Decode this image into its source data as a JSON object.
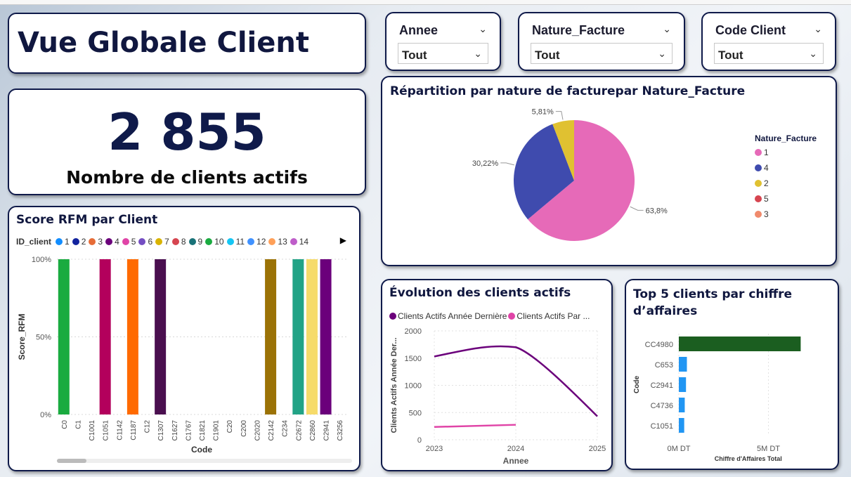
{
  "header": {
    "title": "Vue Globale Client"
  },
  "kpi": {
    "value": "2 855",
    "label": "Nombre de clients actifs"
  },
  "slicers": [
    {
      "name": "Annee",
      "value": "Tout"
    },
    {
      "name": "Nature_Facture",
      "value": "Tout"
    },
    {
      "name": "Code Client",
      "value": "Tout"
    }
  ],
  "icons": {
    "dropdown": "chevron-down-icon",
    "scroll": "chevron-right-icon"
  },
  "rfm": {
    "title": "Score RFM par Client",
    "legend_title": "ID_client",
    "legend": [
      {
        "label": "1",
        "color": "#118DFF"
      },
      {
        "label": "2",
        "color": "#12239E"
      },
      {
        "label": "3",
        "color": "#E66C37"
      },
      {
        "label": "4",
        "color": "#6B007B"
      },
      {
        "label": "5",
        "color": "#E044A7"
      },
      {
        "label": "6",
        "color": "#744EC2"
      },
      {
        "label": "7",
        "color": "#D9B300"
      },
      {
        "label": "8",
        "color": "#D64550"
      },
      {
        "label": "9",
        "color": "#197278"
      },
      {
        "label": "10",
        "color": "#1AAB40"
      },
      {
        "label": "11",
        "color": "#15C6F4"
      },
      {
        "label": "12",
        "color": "#4092FF"
      },
      {
        "label": "13",
        "color": "#FFA058"
      },
      {
        "label": "14",
        "color": "#BE5DC9"
      }
    ]
  },
  "pie": {
    "title": "Répartition par nature de facturepar Nature_Facture",
    "legend_title": "Nature_Facture",
    "legend": [
      {
        "label": "1",
        "color": "#E66AB8"
      },
      {
        "label": "4",
        "color": "#3F4BAE"
      },
      {
        "label": "2",
        "color": "#E0C131"
      },
      {
        "label": "5",
        "color": "#D64550"
      },
      {
        "label": "3",
        "color": "#F08A6C"
      }
    ]
  },
  "line": {
    "title": "Évolution des clients actifs"
  },
  "top5": {
    "title": "Top 5 clients par chiffre d’affaires"
  },
  "chart_data": [
    {
      "type": "bar",
      "title": "Score RFM par Client",
      "xlabel": "Code",
      "ylabel": "Score_RFM",
      "yticks": [
        "0%",
        "50%",
        "100%"
      ],
      "ylim": [
        0,
        1
      ],
      "categories": [
        "C0",
        "C1",
        "C1001",
        "C1051",
        "C1142",
        "C1187",
        "C12",
        "C1307",
        "C1627",
        "C1767",
        "C1821",
        "C1901",
        "C20",
        "C200",
        "C2020",
        "C2142",
        "C234",
        "C2672",
        "C2860",
        "C2941",
        "C3256"
      ],
      "values": [
        1,
        0,
        0,
        1,
        0,
        1,
        0,
        1,
        0,
        0,
        0,
        0,
        0,
        0,
        0,
        1,
        0,
        1,
        1,
        1,
        0
      ],
      "colors": [
        "#1AAB40",
        "",
        "",
        "#B3005C",
        "",
        "#FF6A00",
        "",
        "#4A0F4F",
        "",
        "",
        "",
        "",
        "",
        "",
        "",
        "#9B7206",
        "",
        "#22A386",
        "#F6DB6A",
        "#6B007B",
        ""
      ]
    },
    {
      "type": "pie",
      "title": "Répartition par nature de facturepar Nature_Facture",
      "labels": [
        "1",
        "4",
        "2"
      ],
      "values": [
        63.8,
        30.22,
        5.81
      ],
      "data_labels": [
        "63,8%",
        "30,22%",
        "5,81%"
      ],
      "colors": [
        "#E66AB8",
        "#3F4BAE",
        "#E0C131"
      ],
      "legend_position": "right"
    },
    {
      "type": "line",
      "title": "Évolution des clients actifs",
      "xlabel": "Annee",
      "ylabel": "Clients Actifs Année Der...",
      "x": [
        2023,
        2024,
        2025
      ],
      "ylim": [
        0,
        2000
      ],
      "yticks": [
        0,
        500,
        1000,
        1500,
        2000
      ],
      "series": [
        {
          "name": "Clients Actifs Année Dernière",
          "color": "#6B007B",
          "x": [
            2023,
            2024,
            2025
          ],
          "y": [
            1530,
            1700,
            430
          ]
        },
        {
          "name": "Clients Actifs Par ...",
          "color": "#E044A7",
          "x": [
            2023,
            2024
          ],
          "y": [
            235,
            275
          ]
        }
      ],
      "legend_position": "top-left"
    },
    {
      "type": "bar",
      "orientation": "horizontal",
      "title": "Top 5 clients par chiffre d’affaires",
      "ylabel": "Code",
      "xlabel": "Chiffre d'Affaires Total",
      "categories": [
        "CC4980",
        "C653",
        "C2941",
        "C4736",
        "C1051"
      ],
      "values": [
        6800000,
        450000,
        400000,
        330000,
        300000
      ],
      "xticks": [
        "0M DT",
        "5M DT"
      ],
      "colors": [
        "#1B5E20",
        "#2196F3",
        "#2196F3",
        "#2196F3",
        "#2196F3"
      ]
    }
  ]
}
